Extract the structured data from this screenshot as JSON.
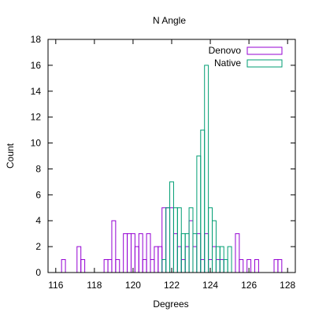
{
  "chart_data": {
    "type": "bar",
    "title": "N Angle",
    "xlabel": "Degrees",
    "ylabel": "Count",
    "xlim": [
      115.6,
      128.4
    ],
    "ylim": [
      0,
      18
    ],
    "xticks": [
      116,
      118,
      120,
      122,
      124,
      126,
      128
    ],
    "yticks": [
      0,
      2,
      4,
      6,
      8,
      10,
      12,
      14,
      16,
      18
    ],
    "grid": false,
    "legend_position": "top-right",
    "bin_width": 0.2,
    "series": [
      {
        "name": "Denovo",
        "color": "#9400d3",
        "bins": [
          [
            116.4,
            1
          ],
          [
            117.2,
            2
          ],
          [
            117.4,
            1
          ],
          [
            118.6,
            1
          ],
          [
            118.8,
            1
          ],
          [
            119.0,
            4
          ],
          [
            119.2,
            1
          ],
          [
            119.6,
            3
          ],
          [
            119.8,
            3
          ],
          [
            120.0,
            3
          ],
          [
            120.2,
            2
          ],
          [
            120.4,
            3
          ],
          [
            120.6,
            1
          ],
          [
            120.8,
            3
          ],
          [
            121.0,
            1
          ],
          [
            121.2,
            2
          ],
          [
            121.4,
            2
          ],
          [
            121.6,
            5
          ],
          [
            121.8,
            5
          ],
          [
            122.0,
            5
          ],
          [
            122.2,
            3
          ],
          [
            122.4,
            2
          ],
          [
            122.6,
            1
          ],
          [
            122.8,
            2
          ],
          [
            123.0,
            4
          ],
          [
            123.2,
            2
          ],
          [
            123.4,
            3
          ],
          [
            123.6,
            1
          ],
          [
            123.8,
            3
          ],
          [
            124.0,
            1
          ],
          [
            124.2,
            2
          ],
          [
            124.4,
            1
          ],
          [
            124.6,
            1
          ],
          [
            125.4,
            3
          ],
          [
            125.6,
            1
          ],
          [
            126.0,
            1
          ],
          [
            126.4,
            1
          ],
          [
            127.4,
            1
          ],
          [
            127.6,
            1
          ]
        ]
      },
      {
        "name": "Native",
        "color": "#009e73",
        "bins": [
          [
            121.6,
            1
          ],
          [
            121.8,
            5
          ],
          [
            122.0,
            7
          ],
          [
            122.2,
            5
          ],
          [
            122.4,
            5
          ],
          [
            122.6,
            3
          ],
          [
            122.8,
            3
          ],
          [
            123.0,
            5
          ],
          [
            123.2,
            3
          ],
          [
            123.4,
            9
          ],
          [
            123.6,
            11
          ],
          [
            123.8,
            16
          ],
          [
            124.0,
            5
          ],
          [
            124.2,
            4
          ],
          [
            124.4,
            2
          ],
          [
            124.6,
            2
          ],
          [
            124.8,
            1
          ],
          [
            125.0,
            2
          ]
        ]
      }
    ]
  }
}
